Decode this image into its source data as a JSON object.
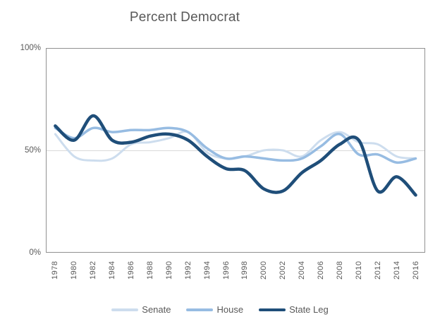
{
  "title": "Percent Democrat",
  "y_axis": {
    "labels": [
      "100%",
      "50%",
      "0%"
    ]
  },
  "x_axis": {
    "years": [
      "1978",
      "1980",
      "1982",
      "1984",
      "1986",
      "1988",
      "1990",
      "1992",
      "1994",
      "1996",
      "1998",
      "2000",
      "2002",
      "2004",
      "2006",
      "2008",
      "2010",
      "2012",
      "2014",
      "2016"
    ]
  },
  "legend": {
    "position": "bottom",
    "items": [
      {
        "label": "Senate",
        "color": "#cdddee"
      },
      {
        "label": "House",
        "color": "#97bce2"
      },
      {
        "label": "State Leg",
        "color": "#1f4e79"
      }
    ]
  },
  "colors": {
    "senate": "#cdddee",
    "house": "#97bce2",
    "state_leg": "#1f4e79",
    "gridline": "#d9d9d9",
    "plot_border": "#919191",
    "text": "#595959"
  },
  "chart_data": {
    "type": "line",
    "title": "Percent Democrat",
    "smooth": true,
    "grid": "50% line only",
    "legend_position": "bottom",
    "ylim": [
      0,
      100
    ],
    "y_tick_labels": [
      "0%",
      "50%",
      "100%"
    ],
    "x": [
      1978,
      1980,
      1982,
      1984,
      1986,
      1988,
      1990,
      1992,
      1994,
      1996,
      1998,
      2000,
      2002,
      2004,
      2006,
      2008,
      2010,
      2012,
      2014,
      2016
    ],
    "series": [
      {
        "name": "Senate",
        "color": "#cdddee",
        "width": 3,
        "values": [
          58,
          47,
          45,
          46,
          53,
          54,
          56,
          59,
          49,
          46,
          47,
          50,
          50,
          47,
          55,
          59,
          54,
          53,
          47,
          46
        ]
      },
      {
        "name": "House",
        "color": "#97bce2",
        "width": 3.5,
        "values": [
          61,
          56,
          61,
          59,
          60,
          60,
          61,
          59,
          51,
          46,
          47,
          46,
          45,
          46,
          52,
          58,
          48,
          48,
          44,
          46
        ]
      },
      {
        "name": "State Leg",
        "color": "#1f4e79",
        "width": 4.5,
        "values": [
          62,
          55,
          67,
          55,
          54,
          57,
          58,
          55,
          47,
          41,
          40,
          31,
          30,
          39,
          45,
          53,
          55,
          30,
          37,
          28
        ]
      }
    ]
  }
}
